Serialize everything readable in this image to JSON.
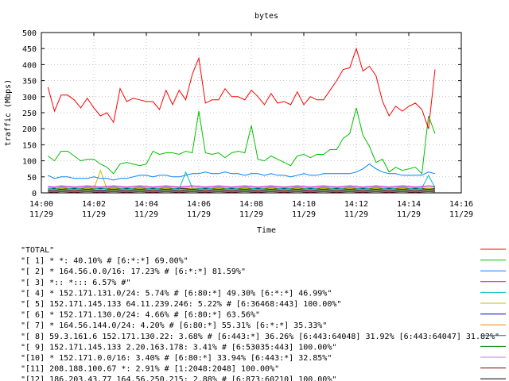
{
  "chart_data": {
    "type": "line",
    "title": "bytes",
    "xlabel": "Time",
    "ylabel": "traffic (Mbps)",
    "ylim": [
      0,
      500
    ],
    "yticks": [
      0,
      50,
      100,
      150,
      200,
      250,
      300,
      350,
      400,
      450,
      500
    ],
    "xlim": [
      "14:00",
      "14:16"
    ],
    "xticks": [
      {
        "time": "14:00",
        "date": "11/29"
      },
      {
        "time": "14:02",
        "date": "11/29"
      },
      {
        "time": "14:04",
        "date": "11/29"
      },
      {
        "time": "14:06",
        "date": "11/29"
      },
      {
        "time": "14:08",
        "date": "11/29"
      },
      {
        "time": "14:10",
        "date": "11/29"
      },
      {
        "time": "14:12",
        "date": "11/29"
      },
      {
        "time": "14:14",
        "date": "11/29"
      },
      {
        "time": "14:16",
        "date": "11/29"
      }
    ],
    "grid": true,
    "legend_position": "bottom",
    "x": [
      "14:00:15",
      "14:00:30",
      "14:00:45",
      "14:01:00",
      "14:01:15",
      "14:01:30",
      "14:01:45",
      "14:02:00",
      "14:02:15",
      "14:02:30",
      "14:02:45",
      "14:03:00",
      "14:03:15",
      "14:03:30",
      "14:03:45",
      "14:04:00",
      "14:04:15",
      "14:04:30",
      "14:04:45",
      "14:05:00",
      "14:05:15",
      "14:05:30",
      "14:05:45",
      "14:06:00",
      "14:06:15",
      "14:06:30",
      "14:06:45",
      "14:07:00",
      "14:07:15",
      "14:07:30",
      "14:07:45",
      "14:08:00",
      "14:08:15",
      "14:08:30",
      "14:08:45",
      "14:09:00",
      "14:09:15",
      "14:09:30",
      "14:09:45",
      "14:10:00",
      "14:10:15",
      "14:10:30",
      "14:10:45",
      "14:11:00",
      "14:11:15",
      "14:11:30",
      "14:11:45",
      "14:12:00",
      "14:12:15",
      "14:12:30",
      "14:12:45",
      "14:13:00",
      "14:13:15",
      "14:13:30",
      "14:13:45",
      "14:14:00",
      "14:14:15",
      "14:14:30",
      "14:14:45",
      "14:15:00"
    ],
    "series": [
      {
        "name": "\"TOTAL\"",
        "color": "#ff0000",
        "values": [
          330,
          255,
          305,
          305,
          290,
          265,
          295,
          265,
          240,
          250,
          220,
          325,
          285,
          295,
          290,
          285,
          285,
          260,
          320,
          275,
          320,
          290,
          370,
          420,
          280,
          290,
          290,
          325,
          300,
          300,
          290,
          320,
          300,
          275,
          310,
          280,
          285,
          275,
          315,
          275,
          300,
          290,
          290,
          320,
          350,
          385,
          390,
          450,
          380,
          395,
          365,
          285,
          240,
          270,
          255,
          270,
          280,
          260,
          200,
          385
        ]
      },
      {
        "name": "\"[ 1] * *: 40.10% # [6:*:*] 69.00%\"",
        "color": "#00c000",
        "values": [
          115,
          100,
          130,
          130,
          115,
          100,
          105,
          105,
          90,
          80,
          60,
          90,
          95,
          90,
          85,
          90,
          130,
          120,
          125,
          125,
          120,
          130,
          125,
          255,
          125,
          120,
          125,
          110,
          125,
          130,
          125,
          210,
          105,
          100,
          115,
          105,
          95,
          85,
          115,
          120,
          110,
          120,
          120,
          135,
          135,
          170,
          185,
          265,
          180,
          145,
          95,
          105,
          65,
          80,
          70,
          75,
          80,
          60,
          240,
          185
        ]
      },
      {
        "name": "\"[ 2] * 164.56.0.0/16: 17.23% # [6:*:*] 81.59%\"",
        "color": "#0080ff",
        "values": [
          55,
          45,
          50,
          50,
          45,
          45,
          45,
          50,
          45,
          45,
          40,
          45,
          45,
          50,
          55,
          55,
          50,
          55,
          55,
          50,
          50,
          55,
          60,
          60,
          65,
          60,
          60,
          65,
          60,
          60,
          55,
          60,
          60,
          55,
          60,
          55,
          55,
          50,
          55,
          60,
          55,
          55,
          60,
          60,
          60,
          60,
          60,
          65,
          75,
          90,
          75,
          65,
          60,
          60,
          55,
          55,
          55,
          55,
          65,
          60
        ]
      },
      {
        "name": "\"[ 3] *:: *::: 6.57% #\"",
        "color": "#c000c0",
        "values": [
          20,
          18,
          22,
          20,
          18,
          20,
          22,
          20,
          18,
          20,
          22,
          20,
          18,
          20,
          22,
          20,
          18,
          20,
          22,
          20,
          18,
          20,
          22,
          20,
          18,
          20,
          22,
          20,
          18,
          20,
          22,
          20,
          18,
          20,
          22,
          20,
          18,
          20,
          22,
          20,
          18,
          20,
          22,
          20,
          18,
          20,
          22,
          20,
          18,
          20,
          22,
          20,
          18,
          20,
          22,
          20,
          18,
          20,
          22,
          20
        ]
      },
      {
        "name": "\"[ 4] * 152.171.131.0/24: 5.74% # [6:80:*] 49.30% [6:*:*] 46.99%\"",
        "color": "#00c0c0",
        "values": [
          15,
          12,
          18,
          15,
          12,
          15,
          18,
          15,
          12,
          15,
          18,
          15,
          12,
          15,
          18,
          15,
          12,
          15,
          18,
          15,
          12,
          65,
          15,
          15,
          12,
          15,
          18,
          15,
          12,
          15,
          18,
          15,
          12,
          15,
          18,
          15,
          12,
          15,
          18,
          15,
          12,
          15,
          18,
          15,
          12,
          15,
          18,
          15,
          12,
          15,
          18,
          15,
          12,
          15,
          18,
          15,
          12,
          15,
          55,
          15
        ]
      },
      {
        "name": "\"[ 5] 152.171.145.133 64.11.239.246: 5.22% # [6:36468:443] 100.00%\"",
        "color": "#c0c000",
        "values": [
          12,
          10,
          14,
          12,
          10,
          12,
          14,
          12,
          70,
          12,
          14,
          12,
          10,
          12,
          14,
          12,
          10,
          12,
          14,
          12,
          10,
          12,
          14,
          12,
          10,
          12,
          14,
          12,
          10,
          12,
          14,
          12,
          10,
          12,
          14,
          12,
          10,
          12,
          14,
          12,
          10,
          12,
          14,
          12,
          10,
          12,
          14,
          12,
          10,
          12,
          14,
          12,
          10,
          12,
          14,
          12,
          10,
          12,
          14,
          12
        ]
      },
      {
        "name": "\"[ 6] * 152.171.130.0/24: 4.66% # [6:80:*] 63.56%\"",
        "color": "#0000c0",
        "values": [
          10,
          8,
          12,
          10,
          8,
          10,
          12,
          10,
          8,
          10,
          12,
          10,
          8,
          10,
          12,
          10,
          8,
          10,
          12,
          10,
          8,
          10,
          12,
          10,
          8,
          10,
          12,
          10,
          8,
          10,
          12,
          10,
          8,
          10,
          12,
          10,
          8,
          10,
          12,
          10,
          8,
          10,
          12,
          10,
          8,
          10,
          12,
          10,
          8,
          10,
          12,
          10,
          8,
          10,
          12,
          10,
          8,
          10,
          12,
          10
        ]
      },
      {
        "name": "\"[ 7] * 164.56.144.0/24: 4.20% # [6:80:*] 55.31% [6:*:*] 35.33%\"",
        "color": "#ff8000",
        "values": [
          8,
          6,
          10,
          8,
          6,
          8,
          10,
          8,
          6,
          8,
          10,
          8,
          6,
          8,
          10,
          8,
          6,
          8,
          10,
          8,
          6,
          8,
          10,
          8,
          6,
          8,
          10,
          8,
          6,
          8,
          10,
          8,
          6,
          8,
          10,
          8,
          6,
          8,
          10,
          8,
          6,
          8,
          10,
          8,
          6,
          8,
          10,
          8,
          6,
          8,
          10,
          8,
          6,
          8,
          10,
          8,
          6,
          8,
          10,
          8
        ]
      },
      {
        "name": "\"[ 8] 59.3.161.6 152.171.130.22: 3.68% # [6:443:*] 36.26% [6:443:64048] 31.92% [6:443:64047] 31.82%\"",
        "color": "#008080",
        "values": [
          6,
          5,
          7,
          6,
          5,
          6,
          7,
          6,
          5,
          6,
          7,
          6,
          5,
          6,
          7,
          6,
          5,
          6,
          7,
          6,
          5,
          6,
          7,
          6,
          5,
          6,
          7,
          6,
          5,
          6,
          7,
          6,
          5,
          6,
          7,
          6,
          5,
          6,
          7,
          6,
          5,
          6,
          7,
          6,
          5,
          6,
          7,
          6,
          5,
          6,
          7,
          6,
          5,
          6,
          7,
          6,
          5,
          6,
          7,
          6
        ]
      },
      {
        "name": "\"[ 9] 152.171.145.133 2.20.163.178: 3.41% # [6:53035:443] 100.00%\"",
        "color": "#008000",
        "values": [
          5,
          4,
          6,
          5,
          4,
          5,
          6,
          5,
          4,
          5,
          6,
          5,
          4,
          5,
          6,
          5,
          4,
          5,
          6,
          5,
          4,
          5,
          6,
          5,
          4,
          5,
          6,
          5,
          4,
          5,
          6,
          5,
          4,
          5,
          6,
          5,
          4,
          5,
          6,
          5,
          4,
          5,
          6,
          5,
          4,
          5,
          6,
          5,
          4,
          5,
          6,
          5,
          4,
          5,
          6,
          5,
          4,
          5,
          6,
          5
        ]
      },
      {
        "name": "\"[10] * 152.171.0.0/16: 3.40% # [6:80:*] 33.94% [6:443:*] 32.85%\"",
        "color": "#c080ff",
        "values": [
          4,
          3,
          5,
          4,
          3,
          4,
          5,
          4,
          3,
          4,
          5,
          4,
          3,
          4,
          5,
          4,
          3,
          4,
          5,
          4,
          3,
          4,
          5,
          4,
          3,
          4,
          5,
          4,
          3,
          4,
          5,
          4,
          3,
          4,
          5,
          4,
          3,
          4,
          5,
          4,
          3,
          4,
          5,
          4,
          3,
          4,
          5,
          4,
          3,
          4,
          5,
          4,
          3,
          4,
          5,
          4,
          3,
          4,
          5,
          4
        ]
      },
      {
        "name": "\"[11] 208.188.100.67 *: 2.91% # [1:2048:2048] 100.00%\"",
        "color": "#800000",
        "values": [
          3,
          2,
          4,
          3,
          2,
          3,
          4,
          3,
          2,
          3,
          4,
          3,
          2,
          3,
          4,
          3,
          2,
          3,
          4,
          3,
          2,
          3,
          4,
          3,
          2,
          3,
          4,
          3,
          2,
          3,
          4,
          3,
          2,
          3,
          4,
          3,
          2,
          3,
          4,
          3,
          2,
          3,
          4,
          3,
          2,
          3,
          4,
          3,
          2,
          3,
          4,
          3,
          2,
          3,
          4,
          3,
          2,
          3,
          4,
          3
        ]
      },
      {
        "name": "\"[12] 186.203.43.77 164.56.250.215: 2.88% # [6:873:60210] 100.00%\"",
        "color": "#000000",
        "values": [
          14,
          14,
          14,
          14,
          14,
          14,
          14,
          14,
          14,
          14,
          14,
          14,
          14,
          14,
          14,
          14,
          14,
          14,
          14,
          14,
          14,
          14,
          14,
          14,
          14,
          14,
          14,
          14,
          14,
          14,
          14,
          14,
          14,
          14,
          14,
          14,
          14,
          14,
          14,
          14,
          14,
          14,
          14,
          14,
          14,
          14,
          14,
          14,
          14,
          14,
          14,
          14,
          14,
          14,
          14,
          14,
          14,
          14,
          14,
          14
        ]
      }
    ]
  }
}
